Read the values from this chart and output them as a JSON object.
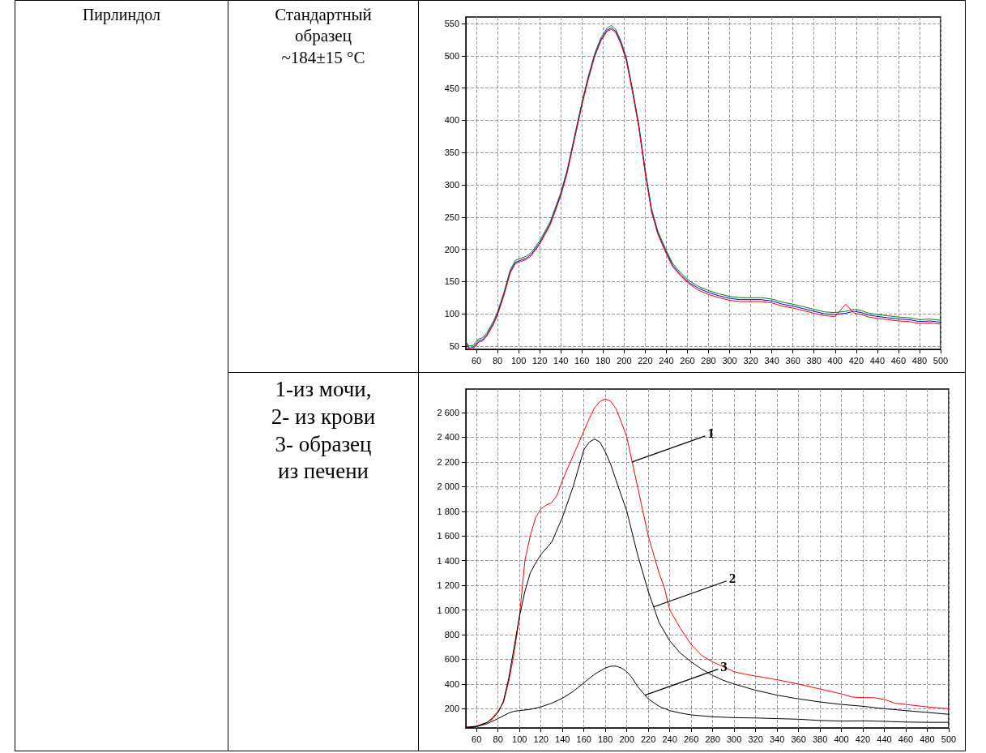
{
  "chart_data": [
    {
      "type": "other",
      "annotations": [
        "Пирлиндол"
      ]
    },
    {
      "type": "line",
      "annotations": [
        "Стандартный",
        "образец",
        "~184±15 °C"
      ],
      "xlim": [
        50,
        500
      ],
      "xticks": [
        60,
        80,
        100,
        120,
        140,
        160,
        180,
        200,
        220,
        240,
        260,
        280,
        300,
        320,
        340,
        360,
        380,
        400,
        420,
        440,
        460,
        480,
        500
      ],
      "ylim": [
        45,
        560
      ],
      "yticks": [
        50,
        100,
        150,
        200,
        250,
        300,
        350,
        400,
        450,
        500,
        550
      ],
      "grid": true,
      "line_style": "solid",
      "x": [
        50,
        53,
        57,
        62,
        66,
        70,
        76,
        80,
        86,
        92,
        97,
        102,
        107,
        112,
        120,
        130,
        140,
        146,
        152,
        160,
        166,
        172,
        178,
        184,
        188,
        192,
        197,
        202,
        208,
        214,
        220,
        226,
        232,
        240,
        246,
        254,
        262,
        270,
        280,
        290,
        300,
        310,
        320,
        330,
        340,
        350,
        360,
        370,
        380,
        390,
        400,
        410,
        418,
        425,
        432,
        440,
        450,
        460,
        470,
        480,
        490,
        500
      ],
      "series": [
        {
          "color": "#008000",
          "values": [
            57,
            50,
            51,
            61,
            63,
            71,
            88,
            103,
            133,
            168,
            183,
            186,
            189,
            195,
            213,
            243,
            288,
            323,
            368,
            428,
            468,
            503,
            528,
            543,
            547,
            541,
            523,
            498,
            448,
            393,
            323,
            263,
            228,
            198,
            178,
            163,
            151,
            143,
            136,
            131,
            127,
            125,
            125,
            125,
            123,
            118,
            115,
            111,
            107,
            103,
            102,
            104,
            107,
            105,
            101,
            99,
            97,
            95,
            94,
            91,
            92,
            90
          ]
        },
        {
          "color": "#0000ff",
          "values": [
            55,
            47,
            48,
            58,
            60,
            68,
            85,
            100,
            130,
            165,
            180,
            183,
            186,
            192,
            210,
            240,
            285,
            320,
            365,
            425,
            465,
            500,
            525,
            540,
            543,
            538,
            520,
            495,
            445,
            390,
            320,
            260,
            225,
            195,
            175,
            160,
            148,
            140,
            133,
            128,
            124,
            122,
            122,
            122,
            120,
            115,
            112,
            108,
            104,
            100,
            99,
            101,
            104,
            102,
            98,
            96,
            94,
            92,
            91,
            88,
            89,
            87
          ]
        },
        {
          "color": "#ff0000",
          "values": [
            53,
            45,
            46,
            56,
            58,
            66,
            83,
            98,
            128,
            163,
            178,
            181,
            184,
            190,
            208,
            238,
            283,
            318,
            363,
            423,
            463,
            498,
            523,
            538,
            541,
            536,
            518,
            493,
            443,
            388,
            318,
            258,
            223,
            193,
            173,
            158,
            146,
            137,
            130,
            125,
            121,
            119,
            119,
            119,
            117,
            112,
            109,
            105,
            101,
            97,
            96,
            115,
            101,
            99,
            95,
            93,
            91,
            89,
            88,
            85,
            86,
            84
          ]
        }
      ]
    },
    {
      "type": "line",
      "annotations": [
        "1-из мочи,",
        "2- из крови",
        "3- образец",
        "из печени",
        {
          "text": "1",
          "x": 205,
          "y": 2200
        },
        {
          "text": "2",
          "x": 225,
          "y": 1025
        },
        {
          "text": "3",
          "x": 217,
          "y": 310
        }
      ],
      "xlim": [
        50,
        500
      ],
      "xticks": [
        60,
        80,
        100,
        120,
        140,
        160,
        180,
        200,
        220,
        240,
        260,
        280,
        300,
        320,
        340,
        360,
        380,
        400,
        420,
        440,
        460,
        480,
        500
      ],
      "ylim": [
        45,
        2790
      ],
      "yticks": [
        200,
        400,
        600,
        800,
        {
          "value": 1000,
          "label": "1 000"
        },
        {
          "value": 1200,
          "label": "1 200"
        },
        {
          "value": 1400,
          "label": "1 400"
        },
        {
          "value": 1600,
          "label": "1 600"
        },
        {
          "value": 1800,
          "label": "1 800"
        },
        {
          "value": 2000,
          "label": "2 000"
        },
        {
          "value": 2200,
          "label": "2 200"
        },
        {
          "value": 2400,
          "label": "2 400"
        },
        {
          "value": 2600,
          "label": "2 600"
        }
      ],
      "grid": true,
      "line_style": "solid",
      "series": [
        {
          "color": "#ff0000",
          "x": [
            50,
            60,
            70,
            75,
            80,
            85,
            90,
            95,
            100,
            105,
            110,
            115,
            120,
            125,
            130,
            135,
            140,
            150,
            160,
            165,
            170,
            175,
            180,
            185,
            190,
            195,
            200,
            205,
            210,
            215,
            220,
            225,
            230,
            235,
            240,
            250,
            260,
            270,
            280,
            290,
            300,
            310,
            320,
            340,
            360,
            380,
            400,
            410,
            420,
            430,
            440,
            450,
            460,
            480,
            500
          ],
          "values": [
            50,
            60,
            90,
            130,
            180,
            250,
            420,
            650,
            950,
            1400,
            1600,
            1750,
            1820,
            1850,
            1870,
            1930,
            2050,
            2250,
            2450,
            2550,
            2640,
            2690,
            2710,
            2690,
            2630,
            2520,
            2400,
            2200,
            2000,
            1800,
            1600,
            1450,
            1300,
            1180,
            1000,
            850,
            720,
            630,
            580,
            540,
            500,
            480,
            465,
            435,
            400,
            360,
            320,
            295,
            290,
            290,
            275,
            245,
            235,
            215,
            200
          ]
        },
        {
          "color": "#000000",
          "x": [
            50,
            60,
            70,
            75,
            80,
            85,
            90,
            95,
            100,
            105,
            110,
            115,
            120,
            130,
            140,
            150,
            160,
            165,
            170,
            175,
            180,
            185,
            190,
            200,
            210,
            220,
            230,
            240,
            250,
            260,
            270,
            280,
            290,
            300,
            320,
            340,
            360,
            380,
            400,
            420,
            440,
            460,
            480,
            500
          ],
          "values": [
            50,
            55,
            90,
            120,
            170,
            260,
            450,
            700,
            950,
            1150,
            1300,
            1380,
            1450,
            1550,
            1750,
            2000,
            2300,
            2360,
            2385,
            2360,
            2280,
            2180,
            2050,
            1800,
            1450,
            1150,
            900,
            750,
            650,
            580,
            520,
            470,
            430,
            400,
            350,
            310,
            280,
            255,
            235,
            220,
            200,
            185,
            170,
            155
          ]
        },
        {
          "color": "#000000",
          "x": [
            50,
            60,
            70,
            80,
            90,
            95,
            100,
            110,
            120,
            130,
            140,
            150,
            160,
            170,
            180,
            185,
            190,
            195,
            200,
            205,
            210,
            220,
            230,
            240,
            250,
            260,
            280,
            300,
            320,
            340,
            360,
            380,
            400,
            420,
            440,
            460,
            480,
            500
          ],
          "values": [
            45,
            55,
            80,
            120,
            165,
            180,
            185,
            195,
            215,
            245,
            285,
            340,
            410,
            480,
            530,
            545,
            545,
            530,
            500,
            450,
            380,
            280,
            220,
            185,
            165,
            150,
            135,
            128,
            125,
            120,
            115,
            105,
            100,
            102,
            98,
            92,
            90,
            90
          ]
        }
      ]
    }
  ]
}
